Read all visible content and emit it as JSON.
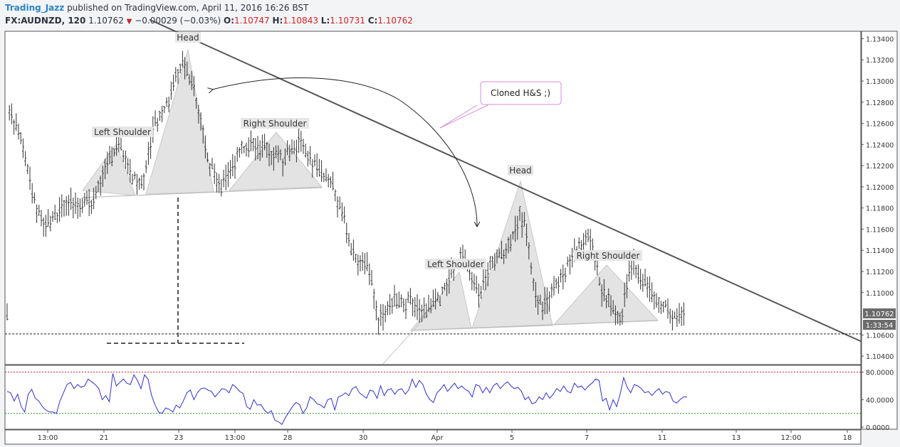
{
  "header": {
    "author": "Trading_Jazz",
    "published": " published on TradingView.com, April 11, 2016 16:26 BST",
    "symbol": "FX:AUDNZD, 120",
    "last": "1.10762",
    "change": "−0.00029 (−0.03%)",
    "open_label": "O:",
    "open": "1.10747",
    "high_label": "H:",
    "high": "1.10843",
    "low_label": "L:",
    "low": "1.10731",
    "close_label": "C:",
    "close": "1.10762"
  },
  "chart_data": [
    {
      "type": "candlestick-ohlc",
      "price_axis_ticks": [
        "1.13400",
        "1.13200",
        "1.13000",
        "1.12800",
        "1.12600",
        "1.12400",
        "1.12200",
        "1.12000",
        "1.11800",
        "1.11600",
        "1.11400",
        "1.11200",
        "1.11000",
        "1.10600",
        "1.10400"
      ],
      "ylim": [
        1.1032,
        1.1347
      ],
      "time_axis_ticks": [
        "13:00",
        "21",
        "23",
        "13:00",
        "28",
        "30",
        "Apr",
        "5",
        "7",
        "11",
        "13",
        "12:00",
        "18"
      ],
      "last_price_label": "1.10762",
      "countdown_label": "1:33:54",
      "annotations": {
        "head_1": "Head",
        "left_shoulder_1": "Left Shoulder",
        "right_shoulder_1": "Right Shoulder",
        "head_2": "Head",
        "left_shoulder_2": "Left Shoulder",
        "right_shoulder_2": "Right Shoulder",
        "callout": "Cloned H&S ;)"
      },
      "trendline": {
        "start_price": 1.1358,
        "end_price": 1.1054
      },
      "horizontal_level": 1.1061,
      "grid": false
    },
    {
      "type": "line",
      "indicator": "RSI",
      "axis_ticks": [
        "80.0000",
        "40.0000",
        "0.0000"
      ],
      "ylim": [
        -3,
        90
      ],
      "levels": [
        80,
        20
      ],
      "values": [
        52,
        50,
        38,
        48,
        30,
        22,
        48,
        55,
        42,
        38,
        30,
        25,
        22,
        22,
        20,
        38,
        50,
        62,
        65,
        56,
        62,
        58,
        60,
        70,
        66,
        62,
        56,
        40,
        46,
        37,
        78,
        60,
        65,
        70,
        64,
        62,
        76,
        68,
        56,
        76,
        70,
        46,
        32,
        22,
        20,
        28,
        26,
        22,
        32,
        28,
        38,
        50,
        54,
        40,
        50,
        56,
        57,
        54,
        52,
        44,
        50,
        56,
        55,
        50,
        62,
        58,
        52,
        49,
        30,
        26,
        40,
        32,
        33,
        25,
        20,
        24,
        10,
        8,
        4,
        14,
        22,
        30,
        36,
        33,
        20,
        28,
        44,
        40,
        34,
        32,
        28,
        40,
        42,
        25,
        44,
        46,
        50,
        46,
        56,
        59,
        50,
        46,
        42,
        54,
        52,
        42,
        60,
        46,
        54,
        56,
        48,
        54,
        56,
        48,
        54,
        70,
        58,
        68,
        62,
        48,
        40,
        36,
        50,
        55,
        62,
        52,
        58,
        64,
        56,
        60,
        55,
        52,
        44,
        62,
        60,
        50,
        58,
        50,
        60,
        64,
        56,
        62,
        66,
        60,
        56,
        58,
        52,
        40,
        44,
        34,
        36,
        44,
        40,
        50,
        42,
        48,
        56,
        52,
        60,
        52,
        50,
        64,
        58,
        60,
        54,
        60,
        64,
        70,
        68,
        38,
        42,
        25,
        40,
        30,
        48,
        72,
        58,
        50,
        62,
        60,
        56,
        50,
        52,
        46,
        52,
        56,
        48,
        52,
        50,
        38,
        35,
        40,
        44,
        44
      ]
    }
  ]
}
